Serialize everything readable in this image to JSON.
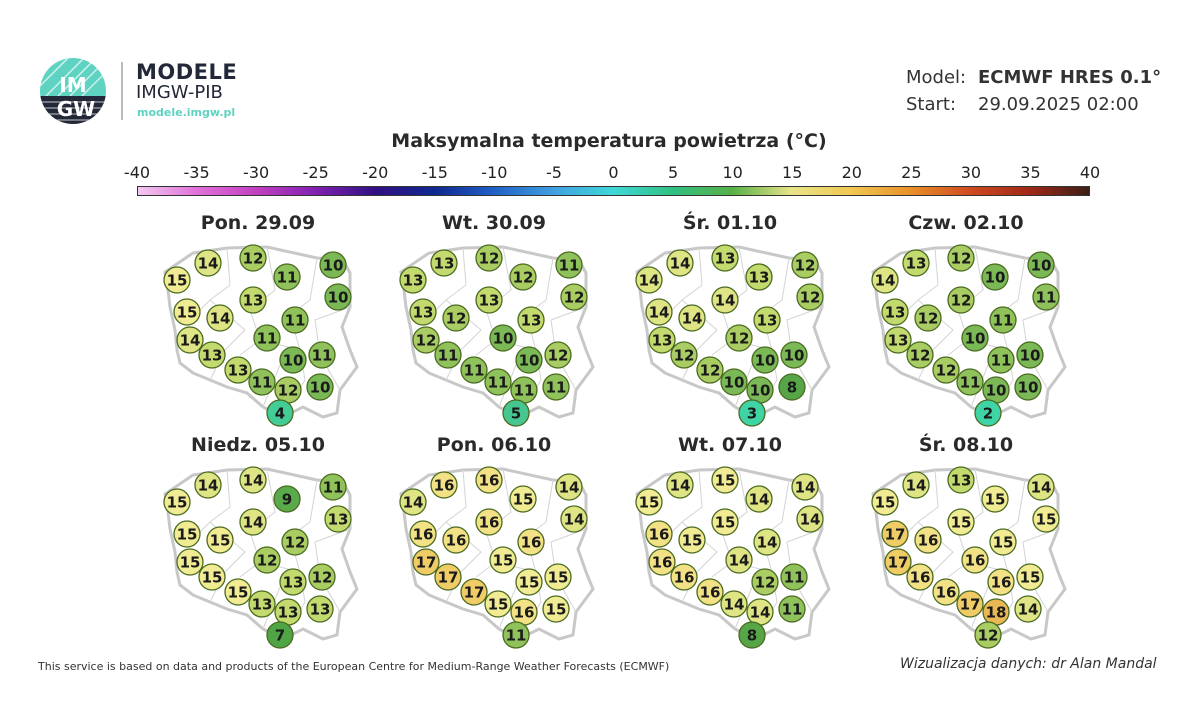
{
  "brand": {
    "logo_text": "IMGW",
    "title": "MODELE",
    "subtitle": "IMGW-PIB",
    "url": "modele.imgw.pl"
  },
  "model_info": {
    "model_label": "Model:",
    "model_value": "ECMWF HRES 0.1°",
    "start_label": "Start:",
    "start_value": "29.09.2025 02:00"
  },
  "title": "Maksymalna temperatura powietrza (°C)",
  "colorbar": {
    "ticks": [
      "-40",
      "-35",
      "-30",
      "-25",
      "-20",
      "-15",
      "-10",
      "-5",
      "0",
      "5",
      "10",
      "15",
      "20",
      "25",
      "30",
      "35",
      "40"
    ],
    "range": [
      -40,
      40
    ],
    "colors": [
      "#f3c8f0",
      "#e070d8",
      "#c040c0",
      "#8020b0",
      "#301080",
      "#102890",
      "#2060c8",
      "#40a0e0",
      "#40d8d8",
      "#30c080",
      "#58b048",
      "#e8e488",
      "#f0c850",
      "#e89028",
      "#d04a20",
      "#a02818",
      "#3a2018"
    ]
  },
  "panels": [
    {
      "title": "Pon. 29.09",
      "values": [
        15,
        14,
        12,
        11,
        10,
        10,
        13,
        15,
        14,
        11,
        14,
        11,
        13,
        10,
        11,
        13,
        11,
        12,
        10,
        4
      ]
    },
    {
      "title": "Wt. 30.09",
      "values": [
        13,
        13,
        12,
        12,
        11,
        12,
        13,
        13,
        12,
        13,
        12,
        10,
        11,
        10,
        12,
        11,
        11,
        11,
        11,
        5
      ]
    },
    {
      "title": "Śr. 01.10",
      "values": [
        14,
        14,
        13,
        13,
        12,
        12,
        14,
        14,
        14,
        13,
        13,
        12,
        12,
        10,
        10,
        12,
        10,
        10,
        8,
        3
      ]
    },
    {
      "title": "Czw. 02.10",
      "values": [
        14,
        13,
        12,
        10,
        10,
        11,
        12,
        13,
        12,
        11,
        13,
        10,
        12,
        11,
        10,
        12,
        11,
        10,
        10,
        2
      ]
    },
    {
      "title": "Niedz. 05.10",
      "values": [
        15,
        14,
        14,
        9,
        11,
        13,
        14,
        15,
        15,
        12,
        15,
        12,
        15,
        13,
        12,
        15,
        13,
        13,
        13,
        7
      ]
    },
    {
      "title": "Pon. 06.10",
      "values": [
        14,
        16,
        16,
        15,
        14,
        14,
        16,
        16,
        16,
        16,
        17,
        15,
        17,
        15,
        15,
        17,
        15,
        16,
        15,
        11
      ]
    },
    {
      "title": "Wt. 07.10",
      "values": [
        15,
        14,
        15,
        14,
        14,
        14,
        15,
        16,
        15,
        14,
        16,
        14,
        16,
        12,
        11,
        16,
        14,
        14,
        11,
        8
      ]
    },
    {
      "title": "Śr. 08.10",
      "values": [
        15,
        14,
        13,
        15,
        14,
        15,
        15,
        17,
        16,
        15,
        17,
        16,
        16,
        16,
        15,
        16,
        17,
        18,
        14,
        12
      ]
    }
  ],
  "footer": {
    "left": "This service is based on data and products of the European Centre for Medium-Range Weather Forecasts (ECMWF)",
    "right": "Wizualizacja danych: dr Alan Mandal"
  }
}
